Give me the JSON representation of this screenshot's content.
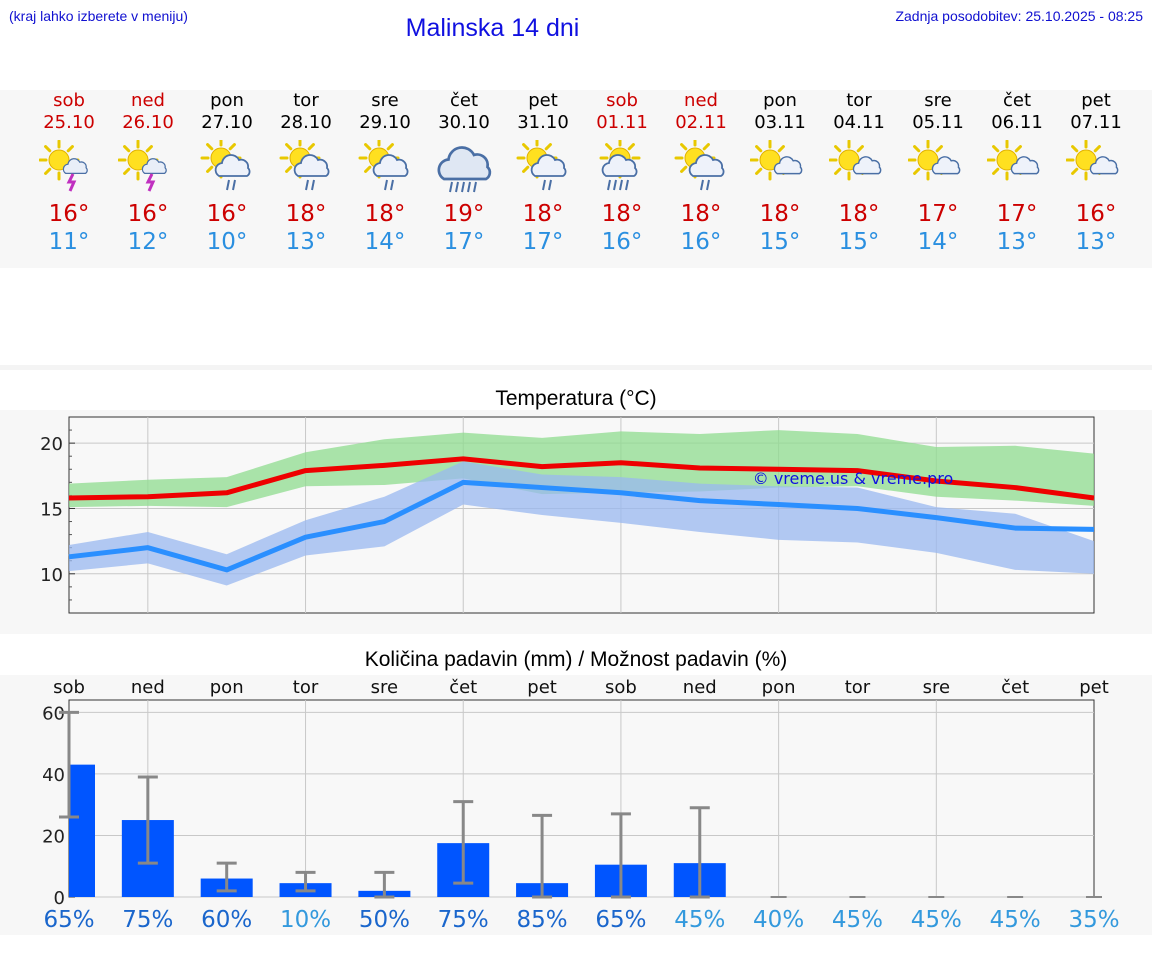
{
  "header": {
    "hint": "(kraj lahko izberete v meniju)",
    "title": "Malinska 14 dni",
    "updated": "Zadnja posodobitev: 25.10.2025 - 08:25"
  },
  "days": [
    {
      "name": "sob",
      "date": "25.10",
      "weekend": true,
      "icon": "sun-cloud-thunder-icon",
      "tmax": "16°",
      "tmin": "11°"
    },
    {
      "name": "ned",
      "date": "26.10",
      "weekend": true,
      "icon": "sun-cloud-thunder-icon",
      "tmax": "16°",
      "tmin": "12°"
    },
    {
      "name": "pon",
      "date": "27.10",
      "weekend": false,
      "icon": "sun-cloud-rain-icon",
      "tmax": "16°",
      "tmin": "10°"
    },
    {
      "name": "tor",
      "date": "28.10",
      "weekend": false,
      "icon": "sun-cloud-rain-icon",
      "tmax": "18°",
      "tmin": "13°"
    },
    {
      "name": "sre",
      "date": "29.10",
      "weekend": false,
      "icon": "sun-cloud-rain-icon",
      "tmax": "18°",
      "tmin": "14°"
    },
    {
      "name": "čet",
      "date": "30.10",
      "weekend": false,
      "icon": "cloud-heavy-rain-icon",
      "tmax": "19°",
      "tmin": "17°"
    },
    {
      "name": "pet",
      "date": "31.10",
      "weekend": false,
      "icon": "sun-cloud-rain-icon",
      "tmax": "18°",
      "tmin": "17°"
    },
    {
      "name": "sob",
      "date": "01.11",
      "weekend": true,
      "icon": "sun-cloud-heavy-rain-icon",
      "tmax": "18°",
      "tmin": "16°"
    },
    {
      "name": "ned",
      "date": "02.11",
      "weekend": true,
      "icon": "sun-cloud-rain-icon",
      "tmax": "18°",
      "tmin": "16°"
    },
    {
      "name": "pon",
      "date": "03.11",
      "weekend": false,
      "icon": "sun-cloud-icon",
      "tmax": "18°",
      "tmin": "15°"
    },
    {
      "name": "tor",
      "date": "04.11",
      "weekend": false,
      "icon": "sun-cloud-icon",
      "tmax": "18°",
      "tmin": "15°"
    },
    {
      "name": "sre",
      "date": "05.11",
      "weekend": false,
      "icon": "sun-cloud-icon",
      "tmax": "17°",
      "tmin": "14°"
    },
    {
      "name": "čet",
      "date": "06.11",
      "weekend": false,
      "icon": "sun-cloud-icon",
      "tmax": "17°",
      "tmin": "13°"
    },
    {
      "name": "pet",
      "date": "07.11",
      "weekend": false,
      "icon": "sun-cloud-icon",
      "tmax": "16°",
      "tmin": "13°"
    }
  ],
  "colors": {
    "weekend": "#cc0000",
    "weekday": "#000000",
    "tmax_line": "#ee0000",
    "tmin_line": "#2a8fff",
    "tmax_band": "#8fdc8f",
    "tmin_band": "#99b8f0",
    "bar": "#0055ff",
    "prob_high": "#1a66cc",
    "prob_low": "#3399dd"
  },
  "chart_data": [
    {
      "type": "line",
      "title": "Temperatura (°C)",
      "ylim": [
        7,
        22
      ],
      "yticks": [
        10,
        15,
        20
      ],
      "grid": true,
      "watermark": "© vreme.us & vreme.pro",
      "x": [
        0,
        1,
        2,
        3,
        4,
        5,
        6,
        7,
        8,
        9,
        10,
        11,
        12,
        13
      ],
      "series": [
        {
          "role": "max",
          "values": [
            15.8,
            15.9,
            16.2,
            17.9,
            18.3,
            18.8,
            18.2,
            18.5,
            18.1,
            18.0,
            17.9,
            17.1,
            16.6,
            15.8
          ],
          "band_low": [
            15.1,
            15.2,
            15.1,
            16.7,
            16.8,
            17.3,
            16.1,
            16.2,
            16.3,
            16.6,
            16.7,
            15.9,
            15.6,
            15.2
          ],
          "band_high": [
            16.9,
            17.2,
            17.4,
            19.3,
            20.3,
            20.8,
            20.4,
            20.9,
            20.7,
            21.0,
            20.7,
            19.7,
            19.8,
            19.2
          ]
        },
        {
          "role": "min",
          "values": [
            11.3,
            12.0,
            10.3,
            12.8,
            14.0,
            17.0,
            16.6,
            16.2,
            15.6,
            15.3,
            15.0,
            14.3,
            13.5,
            13.4
          ],
          "band_low": [
            10.2,
            10.8,
            9.1,
            11.4,
            12.1,
            15.3,
            14.5,
            13.9,
            13.2,
            12.6,
            12.4,
            11.6,
            10.3,
            10.0
          ],
          "band_high": [
            12.2,
            13.2,
            11.5,
            14.1,
            15.9,
            18.6,
            17.6,
            17.4,
            16.9,
            16.7,
            16.6,
            15.1,
            14.6,
            12.5
          ]
        }
      ]
    },
    {
      "type": "bar",
      "title": "Količina padavin (mm) / Možnost padavin (%)",
      "ylim": [
        0,
        64
      ],
      "yticks": [
        0,
        20,
        40,
        60
      ],
      "grid": true,
      "categories": [
        "sob",
        "ned",
        "pon",
        "tor",
        "sre",
        "čet",
        "pet",
        "sob",
        "ned",
        "pon",
        "tor",
        "sre",
        "čet",
        "pet"
      ],
      "values": [
        43,
        25,
        6,
        4.5,
        2,
        17.5,
        4.5,
        10.5,
        11,
        0,
        0,
        0,
        0,
        0
      ],
      "error_low": [
        26,
        11,
        2,
        2,
        0,
        4.5,
        0,
        0,
        0,
        0,
        0,
        0,
        0,
        0
      ],
      "error_high": [
        60,
        39,
        11,
        8,
        8,
        31,
        26.5,
        27,
        29,
        0,
        0,
        0,
        0,
        0
      ],
      "probability": [
        "65%",
        "75%",
        "60%",
        "10%",
        "50%",
        "75%",
        "85%",
        "65%",
        "45%",
        "40%",
        "45%",
        "45%",
        "45%",
        "35%"
      ]
    }
  ]
}
